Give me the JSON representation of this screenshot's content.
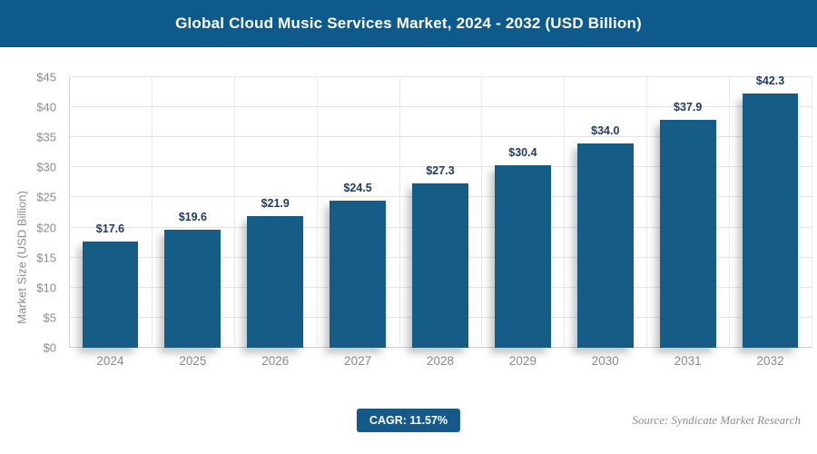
{
  "header": {
    "title": "Global Cloud Music Services Market, 2024 - 2032 (USD Billion)"
  },
  "chart_data": {
    "type": "bar",
    "title": "Global Cloud Music Services Market, 2024 - 2032 (USD Billion)",
    "categories": [
      "2024",
      "2025",
      "2026",
      "2027",
      "2028",
      "2029",
      "2030",
      "2031",
      "2032"
    ],
    "values": [
      17.6,
      19.6,
      21.9,
      24.5,
      27.3,
      30.4,
      34.0,
      37.9,
      42.3
    ],
    "value_prefix": "$",
    "value_decimals": 1,
    "xlabel": "",
    "ylabel": "Market Size (USD Billion)",
    "ylim": [
      0,
      45
    ],
    "ytick_step": 5,
    "ytick_prefix": "$",
    "grid": true,
    "legend": false
  },
  "footer": {
    "cagr_label": "CAGR: 11.57%",
    "source": "Source: Syndicate Market Research"
  },
  "colors": {
    "title_bar_bg": "#0f5a8c",
    "bar_fill": "#155d87",
    "data_label": "#1f3a5f",
    "axis_text": "#8c8c8c",
    "gridline": "#e4e4e4",
    "badge_bg": "#135a8a"
  }
}
